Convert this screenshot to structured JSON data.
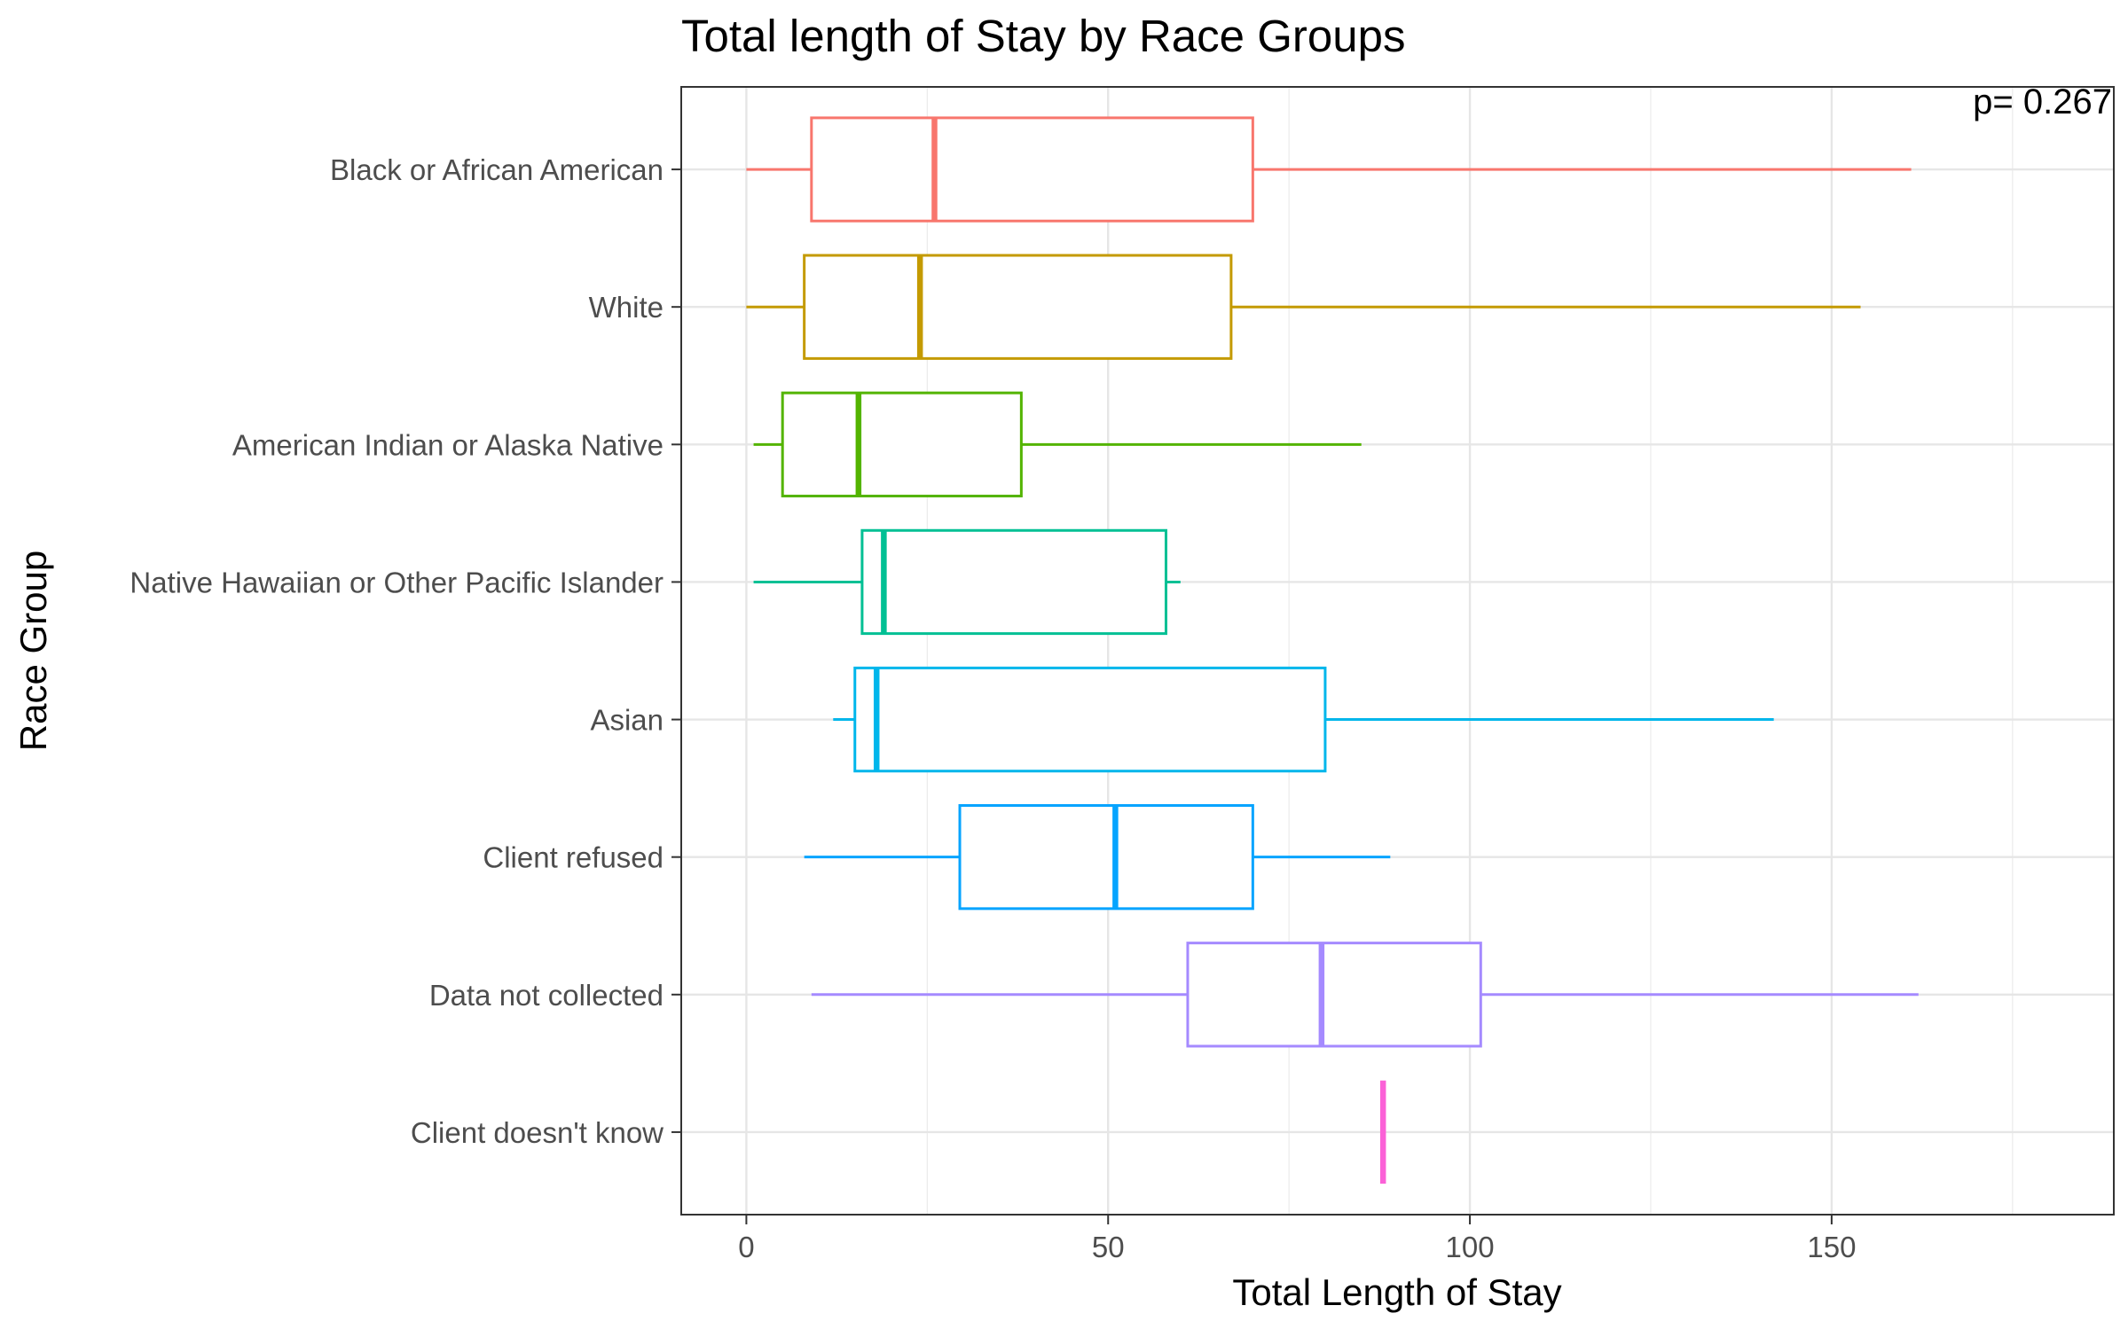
{
  "chart_data": {
    "type": "boxplot",
    "orientation": "horizontal",
    "title": "Total length of Stay by Race Groups",
    "xlabel": "Total Length of Stay",
    "ylabel": "Race Group",
    "xlim": [
      -9,
      189
    ],
    "xticks": [
      0,
      50,
      100,
      150
    ],
    "xtick_labels": [
      "0",
      "50",
      "100",
      "150"
    ],
    "grid": true,
    "legend": "none",
    "annotation": {
      "text": "p= 0.267",
      "placement": "top-right"
    },
    "categories": [
      "Black or African American",
      "White",
      "American Indian or Alaska Native",
      "Native Hawaiian or Other Pacific Islander",
      "Asian",
      "Client refused",
      "Data not collected",
      "Client doesn't know"
    ],
    "series": [
      {
        "category": "Black or African American",
        "color": "#F8766D",
        "min": 0,
        "q1": 9,
        "median": 26,
        "q3": 70,
        "max": 161
      },
      {
        "category": "White",
        "color": "#C49A00",
        "min": 0,
        "q1": 8,
        "median": 24,
        "q3": 67,
        "max": 154
      },
      {
        "category": "American Indian or Alaska Native",
        "color": "#53B400",
        "min": 1,
        "q1": 5,
        "median": 15.5,
        "q3": 38,
        "max": 85
      },
      {
        "category": "Native Hawaiian or Other Pacific Islander",
        "color": "#00C094",
        "min": 1,
        "q1": 16,
        "median": 19,
        "q3": 58,
        "max": 60
      },
      {
        "category": "Asian",
        "color": "#00B6EB",
        "min": 12,
        "q1": 15,
        "median": 18,
        "q3": 80,
        "max": 142
      },
      {
        "category": "Client refused",
        "color": "#06A4FF",
        "min": 8,
        "q1": 29.5,
        "median": 51,
        "q3": 70,
        "max": 89
      },
      {
        "category": "Data not collected",
        "color": "#A58AFF",
        "min": 9,
        "q1": 61,
        "median": 79.5,
        "q3": 101.5,
        "max": 162
      },
      {
        "category": "Client doesn't know",
        "color": "#FB61D7",
        "min": 88,
        "q1": 88,
        "median": 88,
        "q3": 88,
        "max": 88
      }
    ]
  }
}
